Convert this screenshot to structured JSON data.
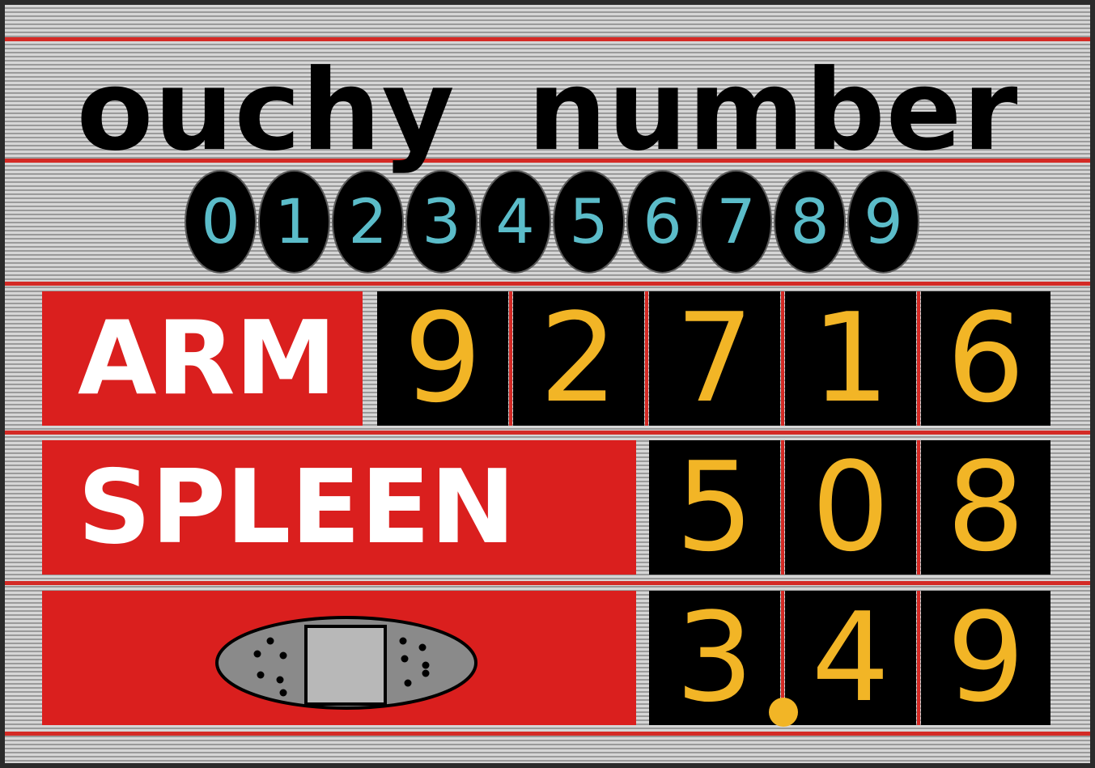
{
  "title": "ouchy number",
  "digits": [
    "0",
    "1",
    "2",
    "3",
    "4",
    "5",
    "6",
    "7",
    "8",
    "9"
  ],
  "rows": [
    {
      "label": "ARM",
      "digits": [
        "9",
        "2",
        "7",
        "1",
        "6"
      ]
    },
    {
      "label": "SPLEEN",
      "digits": [
        "5",
        "0",
        "8"
      ]
    },
    {
      "label": "",
      "icon": "bandage-icon",
      "digits": [
        "3",
        "4",
        "9"
      ],
      "decimal_after_index": 0
    }
  ],
  "colors": {
    "accent_red": "#da1f1e",
    "digit_gold": "#f2b526",
    "selector_cyan": "#5bbcc9",
    "tile_black": "#000000"
  }
}
